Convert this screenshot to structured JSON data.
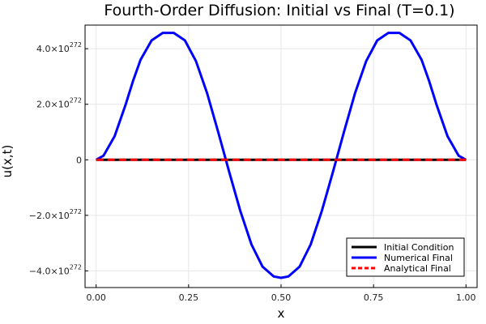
{
  "chart_data": {
    "type": "line",
    "title": "Fourth-Order Diffusion: Initial vs Final (T=0.1)",
    "xlabel": "x",
    "ylabel": "u(x,t)",
    "xlim": [
      -0.03,
      1.03
    ],
    "ylim": [
      -4.6,
      4.85
    ],
    "y_exponent_label": "272",
    "x_ticks": [
      {
        "value": 0.0,
        "label": "0.00"
      },
      {
        "value": 0.25,
        "label": "0.25"
      },
      {
        "value": 0.5,
        "label": "0.50"
      },
      {
        "value": 0.75,
        "label": "0.75"
      },
      {
        "value": 1.0,
        "label": "1.00"
      }
    ],
    "y_ticks": [
      {
        "value": 4,
        "mantissa": "4.0",
        "label": "4.0×10^272"
      },
      {
        "value": 2,
        "mantissa": "2.0",
        "label": "2.0×10^272"
      },
      {
        "value": 0,
        "mantissa": "0",
        "label": "0"
      },
      {
        "value": -2,
        "mantissa": "−2.0",
        "label": "−2.0×10^272"
      },
      {
        "value": -4,
        "mantissa": "−4.0",
        "label": "−4.0×10^272"
      }
    ],
    "grid": true,
    "legend_position": "bottom-right",
    "series": [
      {
        "name": "Initial Condition",
        "color": "#000000",
        "style": "solid",
        "x": [
          0.0,
          0.1,
          0.2,
          0.3,
          0.4,
          0.5,
          0.6,
          0.7,
          0.8,
          0.9,
          1.0
        ],
        "y": [
          0,
          0,
          0,
          0,
          0,
          0,
          0,
          0,
          0,
          0,
          0
        ]
      },
      {
        "name": "Numerical Final",
        "color": "#0000ff",
        "style": "solid",
        "x": [
          0.0,
          0.02,
          0.05,
          0.08,
          0.1,
          0.12,
          0.15,
          0.18,
          0.21,
          0.24,
          0.27,
          0.3,
          0.33,
          0.36,
          0.39,
          0.42,
          0.45,
          0.48,
          0.5,
          0.52,
          0.55,
          0.58,
          0.61,
          0.64,
          0.67,
          0.7,
          0.73,
          0.76,
          0.79,
          0.82,
          0.85,
          0.88,
          0.9,
          0.92,
          0.95,
          0.98,
          1.0
        ],
        "y": [
          0,
          0.15,
          0.85,
          2.0,
          2.85,
          3.6,
          4.3,
          4.57,
          4.57,
          4.3,
          3.55,
          2.4,
          1.0,
          -0.45,
          -1.85,
          -3.05,
          -3.85,
          -4.2,
          -4.25,
          -4.2,
          -3.85,
          -3.05,
          -1.85,
          -0.45,
          1.0,
          2.4,
          3.55,
          4.3,
          4.57,
          4.57,
          4.3,
          3.6,
          2.85,
          2.0,
          0.85,
          0.15,
          0
        ]
      },
      {
        "name": "Analytical Final",
        "color": "#ff0000",
        "style": "dashed",
        "x": [
          0.0,
          0.1,
          0.2,
          0.3,
          0.4,
          0.5,
          0.6,
          0.7,
          0.8,
          0.9,
          1.0
        ],
        "y": [
          0,
          0,
          0,
          0,
          0,
          0,
          0,
          0,
          0,
          0,
          0
        ]
      }
    ]
  }
}
